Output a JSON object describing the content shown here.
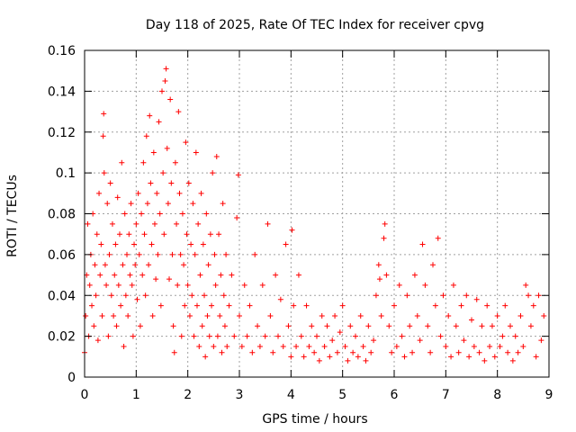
{
  "chart_data": {
    "type": "scatter",
    "title": "Day 118 of 2025, Rate Of TEC Index for receiver cpvg",
    "xlabel": "GPS time / hours",
    "ylabel": "ROTI / TECUs",
    "xlim": [
      0,
      9
    ],
    "ylim": [
      0,
      0.16
    ],
    "x_ticks": [
      0,
      1,
      2,
      3,
      4,
      5,
      6,
      7,
      8,
      9
    ],
    "y_ticks": [
      0,
      0.02,
      0.04,
      0.06,
      0.08,
      0.1,
      0.12,
      0.14,
      0.16
    ],
    "x_tick_labels": [
      "0",
      "1",
      "2",
      "3",
      "4",
      "5",
      "6",
      "7",
      "8",
      "9"
    ],
    "y_tick_labels": [
      "0",
      "0.02",
      "0.04",
      "0.06",
      "0.08",
      "0.1",
      "0.12",
      "0.14",
      "0.16"
    ],
    "grid": true,
    "legend": "none",
    "marker": "plus",
    "color": "#ff0000",
    "series": [
      {
        "points": [
          [
            0.0,
            0.012
          ],
          [
            0.02,
            0.03
          ],
          [
            0.04,
            0.05
          ],
          [
            0.06,
            0.075
          ],
          [
            0.08,
            0.02
          ],
          [
            0.1,
            0.045
          ],
          [
            0.12,
            0.06
          ],
          [
            0.14,
            0.035
          ],
          [
            0.16,
            0.08
          ],
          [
            0.18,
            0.025
          ],
          [
            0.2,
            0.055
          ],
          [
            0.22,
            0.04
          ],
          [
            0.24,
            0.07
          ],
          [
            0.26,
            0.018
          ],
          [
            0.28,
            0.09
          ],
          [
            0.3,
            0.05
          ],
          [
            0.32,
            0.065
          ],
          [
            0.34,
            0.03
          ],
          [
            0.36,
            0.118
          ],
          [
            0.37,
            0.129
          ],
          [
            0.38,
            0.1
          ],
          [
            0.4,
            0.055
          ],
          [
            0.42,
            0.045
          ],
          [
            0.44,
            0.085
          ],
          [
            0.46,
            0.02
          ],
          [
            0.48,
            0.06
          ],
          [
            0.5,
            0.095
          ],
          [
            0.52,
            0.04
          ],
          [
            0.54,
            0.075
          ],
          [
            0.56,
            0.03
          ],
          [
            0.58,
            0.05
          ],
          [
            0.6,
            0.065
          ],
          [
            0.62,
            0.025
          ],
          [
            0.64,
            0.088
          ],
          [
            0.66,
            0.045
          ],
          [
            0.68,
            0.07
          ],
          [
            0.7,
            0.035
          ],
          [
            0.72,
            0.105
          ],
          [
            0.74,
            0.055
          ],
          [
            0.76,
            0.015
          ],
          [
            0.78,
            0.08
          ],
          [
            0.8,
            0.04
          ],
          [
            0.82,
            0.06
          ],
          [
            0.84,
            0.03
          ],
          [
            0.86,
            0.07
          ],
          [
            0.88,
            0.05
          ],
          [
            0.9,
            0.085
          ],
          [
            0.92,
            0.045
          ],
          [
            0.94,
            0.02
          ],
          [
            0.96,
            0.065
          ],
          [
            0.98,
            0.055
          ],
          [
            1.0,
            0.075
          ],
          [
            1.02,
            0.038
          ],
          [
            1.04,
            0.09
          ],
          [
            1.06,
            0.06
          ],
          [
            1.08,
            0.025
          ],
          [
            1.1,
            0.08
          ],
          [
            1.12,
            0.05
          ],
          [
            1.14,
            0.105
          ],
          [
            1.16,
            0.07
          ],
          [
            1.18,
            0.04
          ],
          [
            1.2,
            0.118
          ],
          [
            1.22,
            0.085
          ],
          [
            1.24,
            0.055
          ],
          [
            1.26,
            0.128
          ],
          [
            1.28,
            0.095
          ],
          [
            1.3,
            0.065
          ],
          [
            1.32,
            0.03
          ],
          [
            1.34,
            0.11
          ],
          [
            1.36,
            0.075
          ],
          [
            1.38,
            0.048
          ],
          [
            1.4,
            0.09
          ],
          [
            1.42,
            0.06
          ],
          [
            1.44,
            0.125
          ],
          [
            1.46,
            0.08
          ],
          [
            1.48,
            0.035
          ],
          [
            1.5,
            0.14
          ],
          [
            1.52,
            0.1
          ],
          [
            1.54,
            0.07
          ],
          [
            1.56,
            0.145
          ],
          [
            1.58,
            0.151
          ],
          [
            1.6,
            0.112
          ],
          [
            1.62,
            0.085
          ],
          [
            1.64,
            0.048
          ],
          [
            1.66,
            0.136
          ],
          [
            1.68,
            0.095
          ],
          [
            1.7,
            0.06
          ],
          [
            1.72,
            0.025
          ],
          [
            1.74,
            0.012
          ],
          [
            1.76,
            0.105
          ],
          [
            1.78,
            0.075
          ],
          [
            1.8,
            0.045
          ],
          [
            1.82,
            0.13
          ],
          [
            1.84,
            0.09
          ],
          [
            1.86,
            0.06
          ],
          [
            1.88,
            0.02
          ],
          [
            1.9,
            0.08
          ],
          [
            1.92,
            0.055
          ],
          [
            1.94,
            0.035
          ],
          [
            1.96,
            0.115
          ],
          [
            1.98,
            0.07
          ],
          [
            2.0,
            0.045
          ],
          [
            2.02,
            0.095
          ],
          [
            2.04,
            0.03
          ],
          [
            2.06,
            0.065
          ],
          [
            2.08,
            0.04
          ],
          [
            2.1,
            0.085
          ],
          [
            2.12,
            0.02
          ],
          [
            2.14,
            0.06
          ],
          [
            2.16,
            0.11
          ],
          [
            2.18,
            0.035
          ],
          [
            2.2,
            0.075
          ],
          [
            2.22,
            0.015
          ],
          [
            2.24,
            0.05
          ],
          [
            2.26,
            0.09
          ],
          [
            2.28,
            0.025
          ],
          [
            2.3,
            0.065
          ],
          [
            2.32,
            0.04
          ],
          [
            2.34,
            0.01
          ],
          [
            2.36,
            0.08
          ],
          [
            2.38,
            0.03
          ],
          [
            2.4,
            0.055
          ],
          [
            2.42,
            0.02
          ],
          [
            2.44,
            0.07
          ],
          [
            2.46,
            0.035
          ],
          [
            2.48,
            0.1
          ],
          [
            2.5,
            0.015
          ],
          [
            2.52,
            0.06
          ],
          [
            2.54,
            0.045
          ],
          [
            2.56,
            0.108
          ],
          [
            2.58,
            0.02
          ],
          [
            2.6,
            0.07
          ],
          [
            2.62,
            0.03
          ],
          [
            2.64,
            0.05
          ],
          [
            2.66,
            0.012
          ],
          [
            2.68,
            0.085
          ],
          [
            2.7,
            0.04
          ],
          [
            2.72,
            0.025
          ],
          [
            2.74,
            0.06
          ],
          [
            2.76,
            0.015
          ],
          [
            2.8,
            0.035
          ],
          [
            2.85,
            0.05
          ],
          [
            2.9,
            0.02
          ],
          [
            2.95,
            0.078
          ],
          [
            2.98,
            0.099
          ],
          [
            3.0,
            0.03
          ],
          [
            3.05,
            0.015
          ],
          [
            3.1,
            0.045
          ],
          [
            3.15,
            0.02
          ],
          [
            3.2,
            0.035
          ],
          [
            3.25,
            0.012
          ],
          [
            3.3,
            0.06
          ],
          [
            3.35,
            0.025
          ],
          [
            3.4,
            0.015
          ],
          [
            3.45,
            0.045
          ],
          [
            3.5,
            0.02
          ],
          [
            3.55,
            0.075
          ],
          [
            3.6,
            0.03
          ],
          [
            3.65,
            0.012
          ],
          [
            3.7,
            0.05
          ],
          [
            3.75,
            0.02
          ],
          [
            3.8,
            0.038
          ],
          [
            3.85,
            0.015
          ],
          [
            3.9,
            0.065
          ],
          [
            3.95,
            0.025
          ],
          [
            4.0,
            0.01
          ],
          [
            4.02,
            0.072
          ],
          [
            4.05,
            0.035
          ],
          [
            4.1,
            0.015
          ],
          [
            4.15,
            0.05
          ],
          [
            4.2,
            0.02
          ],
          [
            4.25,
            0.01
          ],
          [
            4.3,
            0.035
          ],
          [
            4.35,
            0.015
          ],
          [
            4.4,
            0.025
          ],
          [
            4.45,
            0.012
          ],
          [
            4.5,
            0.02
          ],
          [
            4.55,
            0.008
          ],
          [
            4.6,
            0.03
          ],
          [
            4.65,
            0.015
          ],
          [
            4.7,
            0.025
          ],
          [
            4.75,
            0.01
          ],
          [
            4.8,
            0.018
          ],
          [
            4.85,
            0.03
          ],
          [
            4.9,
            0.012
          ],
          [
            4.95,
            0.022
          ],
          [
            5.0,
            0.035
          ],
          [
            5.05,
            0.015
          ],
          [
            5.1,
            0.008
          ],
          [
            5.15,
            0.025
          ],
          [
            5.2,
            0.012
          ],
          [
            5.25,
            0.02
          ],
          [
            5.3,
            0.01
          ],
          [
            5.35,
            0.03
          ],
          [
            5.4,
            0.015
          ],
          [
            5.45,
            0.008
          ],
          [
            5.5,
            0.025
          ],
          [
            5.55,
            0.012
          ],
          [
            5.6,
            0.018
          ],
          [
            5.65,
            0.04
          ],
          [
            5.7,
            0.055
          ],
          [
            5.72,
            0.048
          ],
          [
            5.75,
            0.03
          ],
          [
            5.8,
            0.068
          ],
          [
            5.82,
            0.075
          ],
          [
            5.85,
            0.05
          ],
          [
            5.9,
            0.025
          ],
          [
            5.95,
            0.012
          ],
          [
            6.0,
            0.035
          ],
          [
            6.05,
            0.015
          ],
          [
            6.1,
            0.045
          ],
          [
            6.15,
            0.02
          ],
          [
            6.2,
            0.01
          ],
          [
            6.25,
            0.04
          ],
          [
            6.3,
            0.025
          ],
          [
            6.35,
            0.012
          ],
          [
            6.4,
            0.05
          ],
          [
            6.45,
            0.03
          ],
          [
            6.5,
            0.018
          ],
          [
            6.55,
            0.065
          ],
          [
            6.6,
            0.045
          ],
          [
            6.65,
            0.025
          ],
          [
            6.7,
            0.012
          ],
          [
            6.75,
            0.055
          ],
          [
            6.8,
            0.035
          ],
          [
            6.85,
            0.068
          ],
          [
            6.9,
            0.02
          ],
          [
            6.95,
            0.04
          ],
          [
            7.0,
            0.015
          ],
          [
            7.05,
            0.03
          ],
          [
            7.1,
            0.01
          ],
          [
            7.15,
            0.045
          ],
          [
            7.2,
            0.025
          ],
          [
            7.25,
            0.012
          ],
          [
            7.3,
            0.035
          ],
          [
            7.35,
            0.018
          ],
          [
            7.4,
            0.04
          ],
          [
            7.45,
            0.01
          ],
          [
            7.5,
            0.028
          ],
          [
            7.55,
            0.015
          ],
          [
            7.6,
            0.038
          ],
          [
            7.65,
            0.012
          ],
          [
            7.7,
            0.025
          ],
          [
            7.75,
            0.008
          ],
          [
            7.8,
            0.035
          ],
          [
            7.85,
            0.015
          ],
          [
            7.9,
            0.025
          ],
          [
            7.95,
            0.01
          ],
          [
            8.0,
            0.03
          ],
          [
            8.05,
            0.015
          ],
          [
            8.1,
            0.02
          ],
          [
            8.15,
            0.035
          ],
          [
            8.2,
            0.012
          ],
          [
            8.25,
            0.025
          ],
          [
            8.3,
            0.008
          ],
          [
            8.35,
            0.02
          ],
          [
            8.4,
            0.012
          ],
          [
            8.45,
            0.03
          ],
          [
            8.5,
            0.015
          ],
          [
            8.55,
            0.045
          ],
          [
            8.6,
            0.04
          ],
          [
            8.65,
            0.025
          ],
          [
            8.7,
            0.035
          ],
          [
            8.75,
            0.01
          ],
          [
            8.8,
            0.04
          ],
          [
            8.85,
            0.018
          ],
          [
            8.9,
            0.03
          ]
        ]
      }
    ]
  }
}
